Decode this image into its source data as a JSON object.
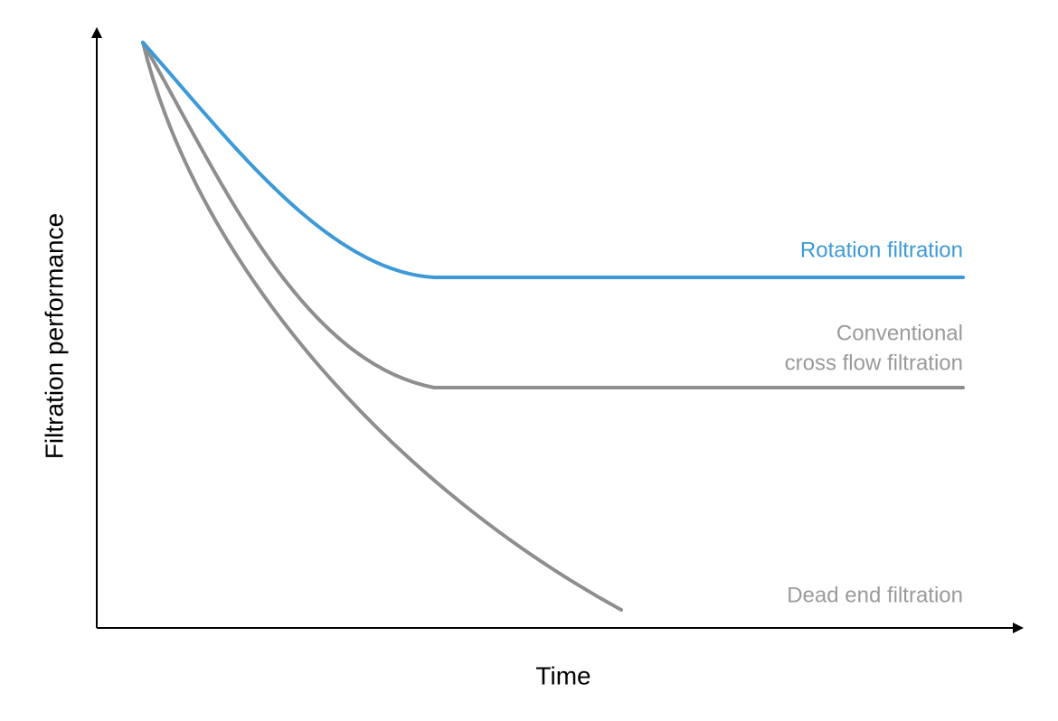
{
  "axes": {
    "x_label": "Time",
    "y_label": "Filtration performance"
  },
  "curves": [
    {
      "label_lines": [
        "Rotation filtration"
      ]
    },
    {
      "label_lines": [
        "Conventional",
        "cross flow filtration"
      ]
    },
    {
      "label_lines": [
        "Dead end filtration"
      ]
    }
  ]
}
